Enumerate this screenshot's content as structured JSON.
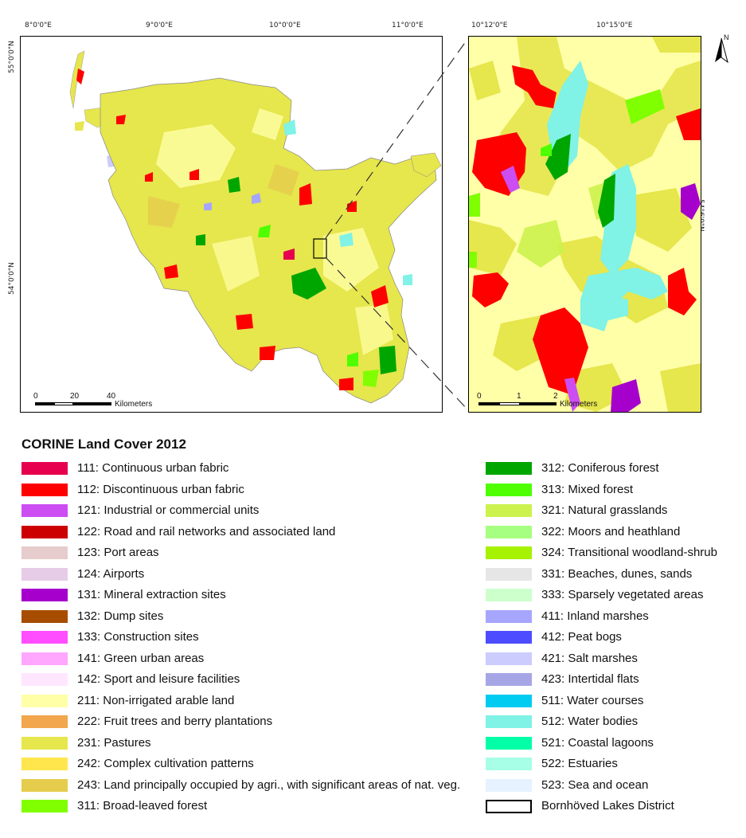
{
  "main_map": {
    "top_ticks": [
      "8°0'0\"E",
      "9°0'0\"E",
      "10°0'0\"E",
      "11°0'0\"E"
    ],
    "left_ticks": [
      "55°0'0\"N",
      "54°0'0\"N"
    ],
    "scale": {
      "labels": [
        "0",
        "20",
        "40"
      ],
      "unit": "Kilometers"
    }
  },
  "inset_map": {
    "top_ticks": [
      "10°12'0\"E",
      "10°15'0\"E"
    ],
    "right_ticks": [
      "54°6'0\"N"
    ],
    "scale": {
      "labels": [
        "0",
        "1",
        "2"
      ],
      "unit": "Kilometers"
    },
    "north_label": "N"
  },
  "legend": {
    "title": "CORINE Land Cover 2012",
    "left": [
      {
        "code": "111",
        "label": "111: Continuous urban fabric",
        "color": "#E6004D"
      },
      {
        "code": "112",
        "label": "112: Discontinuous urban fabric",
        "color": "#FF0000"
      },
      {
        "code": "121",
        "label": "121: Industrial or commercial units",
        "color": "#CC4DF2"
      },
      {
        "code": "122",
        "label": "122: Road and rail networks and associated land",
        "color": "#CC0000"
      },
      {
        "code": "123",
        "label": "123: Port areas",
        "color": "#E6CCCC"
      },
      {
        "code": "124",
        "label": "124: Airports",
        "color": "#E6CCE6"
      },
      {
        "code": "131",
        "label": "131: Mineral extraction sites",
        "color": "#A600CC"
      },
      {
        "code": "132",
        "label": "132: Dump sites",
        "color": "#A64D00"
      },
      {
        "code": "133",
        "label": "133: Construction sites",
        "color": "#FF4DFF"
      },
      {
        "code": "141",
        "label": "141: Green urban areas",
        "color": "#FFA6FF"
      },
      {
        "code": "142",
        "label": "142: Sport and leisure facilities",
        "color": "#FFE6FF"
      },
      {
        "code": "211",
        "label": "211: Non-irrigated arable land",
        "color": "#FFFFA8"
      },
      {
        "code": "222",
        "label": "222: Fruit trees and berry plantations",
        "color": "#F2A64D"
      },
      {
        "code": "231",
        "label": "231: Pastures",
        "color": "#E6E64D"
      },
      {
        "code": "242",
        "label": "242: Complex cultivation patterns",
        "color": "#FFE64D"
      },
      {
        "code": "243",
        "label": "243: Land principally occupied by agri., with significant areas of nat. veg.",
        "color": "#E6CC4D"
      },
      {
        "code": "311",
        "label": "311: Broad-leaved forest",
        "color": "#80FF00"
      }
    ],
    "right": [
      {
        "code": "312",
        "label": "312: Coniferous forest",
        "color": "#00A600"
      },
      {
        "code": "313",
        "label": "313: Mixed forest",
        "color": "#4DFF00"
      },
      {
        "code": "321",
        "label": "321: Natural grasslands",
        "color": "#CCF24D"
      },
      {
        "code": "322",
        "label": "322: Moors and heathland",
        "color": "#A6FF80"
      },
      {
        "code": "324",
        "label": "324: Transitional woodland-shrub",
        "color": "#A6F200"
      },
      {
        "code": "331",
        "label": "331: Beaches, dunes, sands",
        "color": "#E6E6E6"
      },
      {
        "code": "333",
        "label": "333: Sparsely vegetated areas",
        "color": "#CCFFCC"
      },
      {
        "code": "411",
        "label": "411: Inland marshes",
        "color": "#A6A6FF"
      },
      {
        "code": "412",
        "label": "412: Peat bogs",
        "color": "#4D4DFF"
      },
      {
        "code": "421",
        "label": "421: Salt marshes",
        "color": "#CCCCFF"
      },
      {
        "code": "423",
        "label": "423: Intertidal flats",
        "color": "#A6A6E6"
      },
      {
        "code": "511",
        "label": "511: Water courses",
        "color": "#00CCF2"
      },
      {
        "code": "512",
        "label": "512: Water bodies",
        "color": "#80F2E6"
      },
      {
        "code": "521",
        "label": "521: Coastal lagoons",
        "color": "#00FFA6"
      },
      {
        "code": "522",
        "label": "522: Estuaries",
        "color": "#A6FFE6"
      },
      {
        "code": "523",
        "label": "523: Sea and ocean",
        "color": "#E6F2FF"
      },
      {
        "code": "outline",
        "label": "Bornhöved Lakes District",
        "color": "#FFFFFF"
      }
    ]
  }
}
